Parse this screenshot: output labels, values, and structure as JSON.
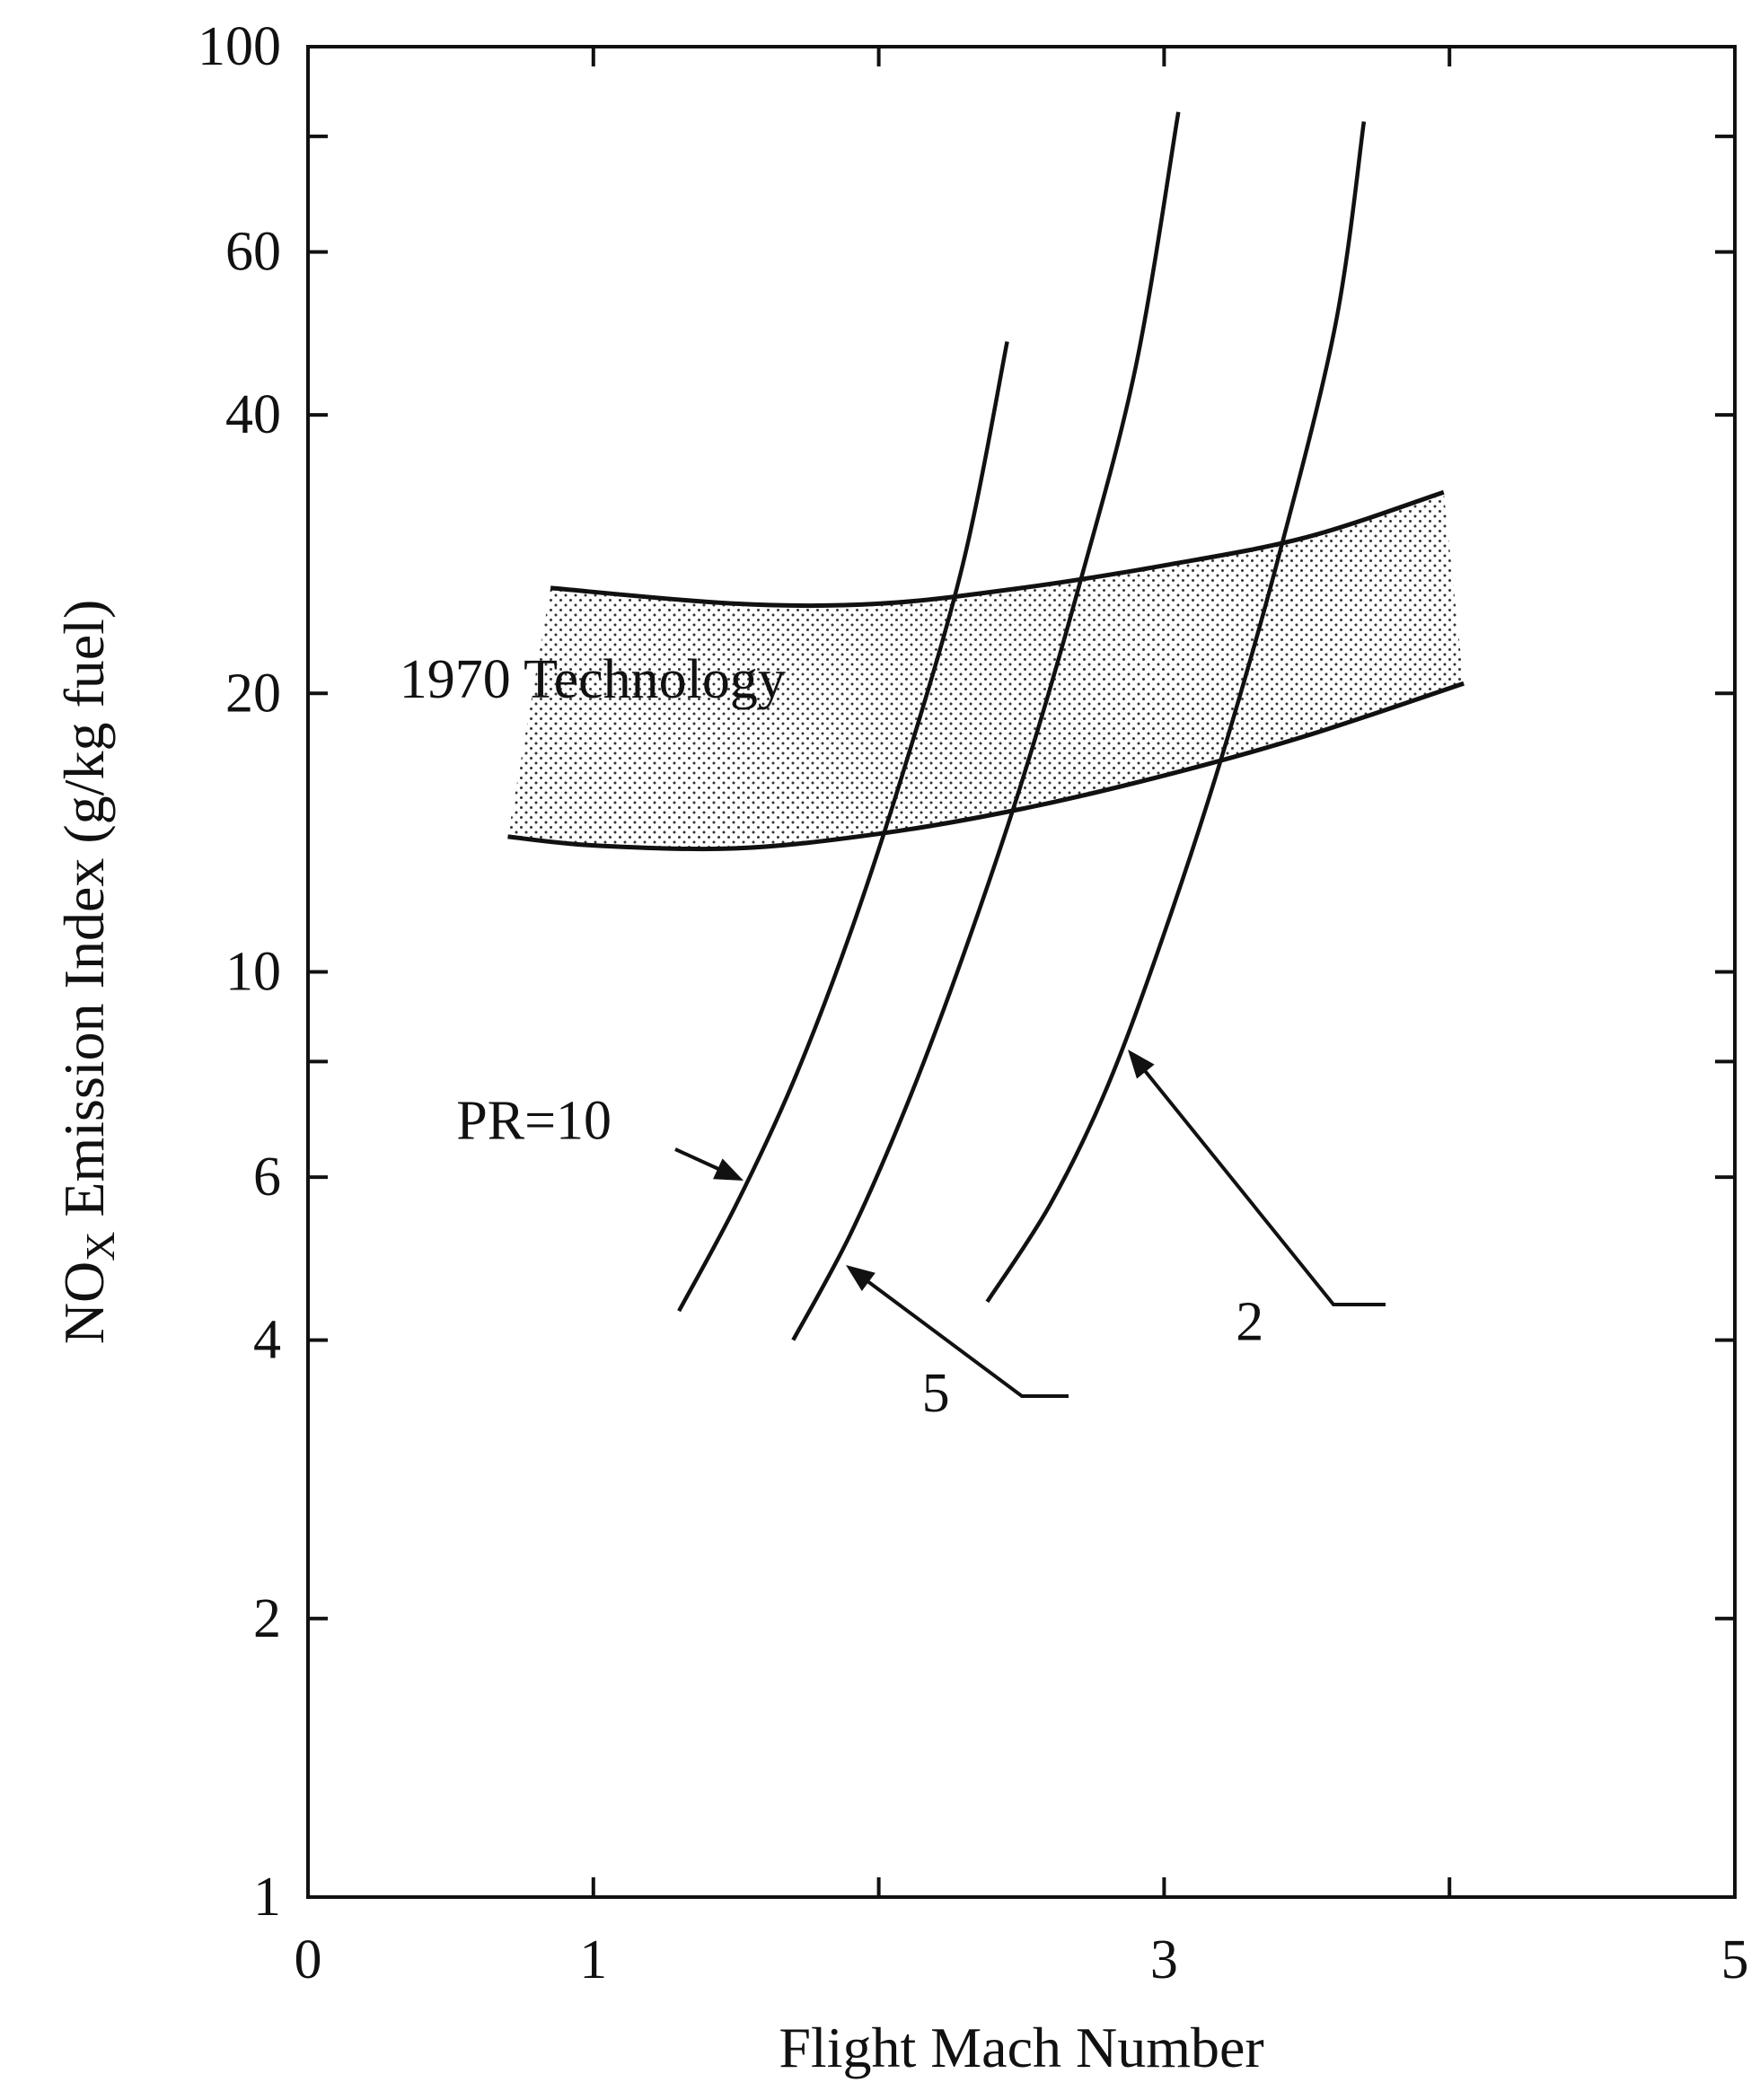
{
  "chart_data": {
    "type": "line",
    "xlabel": "Flight Mach Number",
    "ylabel": "NOx Emission Index (g/kg fuel)",
    "ylabel_parts": {
      "prefix": "NO",
      "subscript": "X",
      "suffix": " Emission Index (g/kg fuel)"
    },
    "xlim": [
      0,
      5
    ],
    "ylim": [
      1,
      100
    ],
    "yscale": "log",
    "x_ticks": [
      0,
      1,
      2,
      3,
      4,
      5
    ],
    "x_tick_labels": [
      "0",
      "1",
      "",
      "3",
      "",
      "5"
    ],
    "y_ticks": [
      1,
      2,
      4,
      6,
      8,
      10,
      20,
      40,
      60,
      80,
      100
    ],
    "y_tick_labels": [
      "1",
      "2",
      "4",
      "6",
      "",
      "10",
      "20",
      "40",
      "60",
      "",
      "100"
    ],
    "grid": false,
    "band": {
      "label": "1970 Technology",
      "upper": {
        "x": [
          0.85,
          1.5,
          2.0,
          2.5,
          3.0,
          3.5,
          3.98
        ],
        "y": [
          26,
          25,
          25,
          26,
          27.5,
          29.5,
          33
        ]
      },
      "lower": {
        "x": [
          0.7,
          1.0,
          1.5,
          2.0,
          2.5,
          3.0,
          3.5,
          4.05
        ],
        "y": [
          14,
          13.7,
          13.6,
          14.1,
          15,
          16.3,
          18,
          20.5
        ]
      }
    },
    "series": [
      {
        "name": "PR=10",
        "x": [
          1.3,
          1.5,
          1.7,
          1.9,
          2.1,
          2.3,
          2.45
        ],
        "y": [
          4.3,
          5.6,
          7.6,
          11,
          17,
          28,
          48
        ]
      },
      {
        "name": "5",
        "x": [
          1.7,
          1.9,
          2.1,
          2.3,
          2.5,
          2.7,
          2.9,
          3.05
        ],
        "y": [
          4.0,
          5.2,
          7.2,
          10.5,
          16,
          26,
          45,
          85
        ]
      },
      {
        "name": "2",
        "x": [
          2.38,
          2.6,
          2.8,
          3.0,
          3.2,
          3.4,
          3.6,
          3.7
        ],
        "y": [
          4.4,
          5.6,
          7.5,
          11,
          17,
          28,
          50,
          83
        ]
      }
    ],
    "annotations": [
      {
        "text": "PR=10",
        "x": 0.52,
        "y": 6.6
      },
      {
        "text": "5",
        "x": 2.2,
        "y": 3.35
      },
      {
        "text": "2",
        "x": 3.3,
        "y": 4.0
      },
      {
        "text": "1970 Technology",
        "x": 0.32,
        "y": 19.8
      }
    ]
  }
}
